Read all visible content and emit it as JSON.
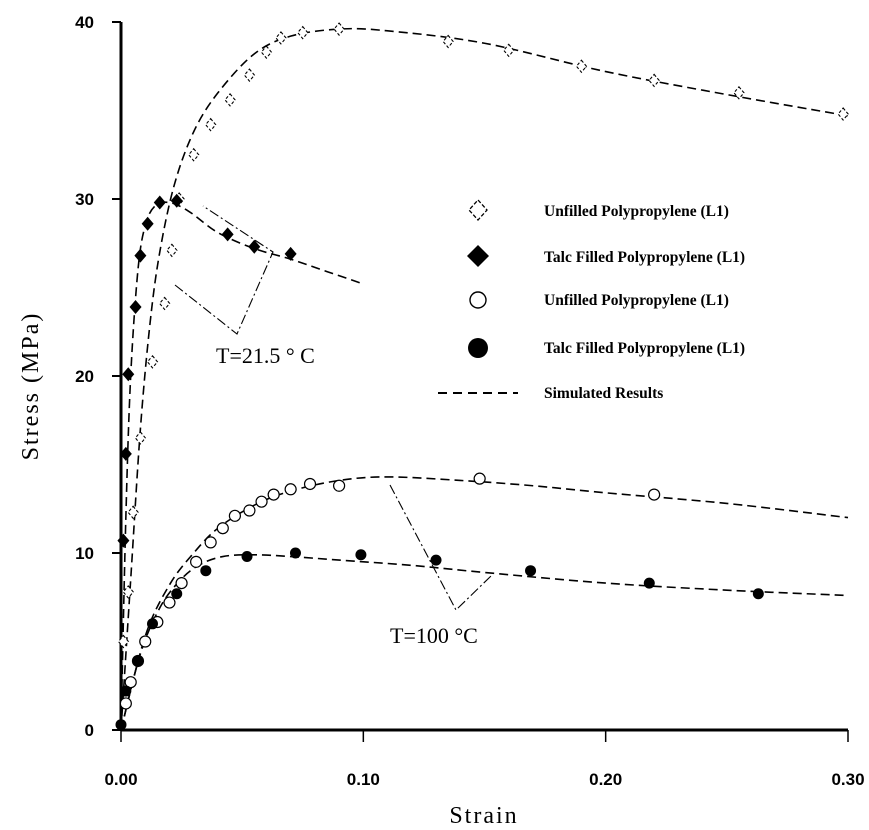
{
  "chart_data": {
    "type": "scatter",
    "xlabel": "Strain",
    "ylabel": "Stress (MPa)",
    "xlim": [
      0,
      0.3
    ],
    "ylim": [
      0,
      40
    ],
    "x_ticks": [
      "0.00",
      "0.10",
      "0.20",
      "0.30"
    ],
    "y_ticks": [
      "0",
      "10",
      "20",
      "30",
      "40"
    ],
    "grid": false,
    "legend_position": "right",
    "series": [
      {
        "name": "Unfilled Polypropylene (L1)",
        "marker": "open-diamond",
        "condition": "T=21.5 °C",
        "x": [
          0.001,
          0.003,
          0.005,
          0.008,
          0.013,
          0.018,
          0.021,
          0.024,
          0.03,
          0.037,
          0.045,
          0.053,
          0.06,
          0.066,
          0.075,
          0.09,
          0.135,
          0.16,
          0.19,
          0.22,
          0.255,
          0.298
        ],
        "y": [
          5.0,
          7.8,
          12.3,
          16.5,
          20.8,
          24.1,
          27.1,
          30.0,
          32.5,
          34.2,
          35.6,
          37.0,
          38.3,
          39.1,
          39.4,
          39.6,
          38.9,
          38.4,
          37.5,
          36.7,
          36.0,
          34.8
        ]
      },
      {
        "name": "Talc Filled Polypropylene (L1)",
        "marker": "filled-diamond",
        "condition": "T=21.5 °C",
        "x": [
          0.001,
          0.002,
          0.003,
          0.006,
          0.008,
          0.011,
          0.016,
          0.023,
          0.044,
          0.055,
          0.07
        ],
        "y": [
          10.7,
          15.6,
          20.1,
          23.9,
          26.8,
          28.6,
          29.8,
          29.9,
          28.0,
          27.3,
          26.9
        ]
      },
      {
        "name": "Unfilled Polypropylene (L1)",
        "marker": "open-circle",
        "condition": "T=100 °C",
        "x": [
          0.002,
          0.004,
          0.007,
          0.01,
          0.015,
          0.02,
          0.025,
          0.031,
          0.037,
          0.042,
          0.047,
          0.053,
          0.058,
          0.063,
          0.07,
          0.078,
          0.09,
          0.148,
          0.22
        ],
        "y": [
          1.5,
          2.7,
          3.9,
          5.0,
          6.1,
          7.2,
          8.3,
          9.5,
          10.6,
          11.4,
          12.1,
          12.4,
          12.9,
          13.3,
          13.6,
          13.9,
          13.8,
          14.2,
          13.3
        ]
      },
      {
        "name": "Talc Filled Polypropylene (L1)",
        "marker": "filled-circle",
        "condition": "T=100 °C",
        "x": [
          0.0,
          0.002,
          0.007,
          0.013,
          0.023,
          0.035,
          0.052,
          0.072,
          0.099,
          0.13,
          0.169,
          0.218,
          0.263
        ],
        "y": [
          0.3,
          2.2,
          3.9,
          6.0,
          7.7,
          9.0,
          9.8,
          10.0,
          9.9,
          9.6,
          9.0,
          8.3,
          7.7
        ]
      },
      {
        "name": "Simulated Results",
        "marker": "dashed-line",
        "curves": [
          {
            "x": [
              0.0,
              0.004,
              0.008,
              0.012,
              0.016,
              0.022,
              0.03,
              0.04,
              0.055,
              0.07,
              0.09,
              0.11,
              0.15,
              0.2,
              0.25,
              0.3
            ],
            "y": [
              0.0,
              8.5,
              17.0,
              23.0,
              27.0,
              30.8,
              33.8,
              36.0,
              38.2,
              39.2,
              39.6,
              39.5,
              38.8,
              37.2,
              35.9,
              34.7
            ]
          },
          {
            "x": [
              0.0,
              0.002,
              0.004,
              0.007,
              0.01,
              0.014,
              0.02,
              0.028,
              0.04,
              0.055,
              0.07,
              0.085,
              0.1
            ],
            "y": [
              0.0,
              12.0,
              20.0,
              26.0,
              28.5,
              29.6,
              29.8,
              29.3,
              28.1,
              27.2,
              26.6,
              25.9,
              25.2
            ]
          },
          {
            "x": [
              0.0,
              0.01,
              0.02,
              0.03,
              0.04,
              0.055,
              0.07,
              0.09,
              0.11,
              0.14,
              0.17,
              0.2,
              0.25,
              0.3
            ],
            "y": [
              0.0,
              5.3,
              8.2,
              10.0,
              11.4,
              12.7,
              13.5,
              14.1,
              14.3,
              14.1,
              13.8,
              13.4,
              12.8,
              12.0
            ]
          },
          {
            "x": [
              0.0,
              0.008,
              0.016,
              0.024,
              0.032,
              0.042,
              0.055,
              0.07,
              0.09,
              0.12,
              0.15,
              0.2,
              0.25,
              0.3
            ],
            "y": [
              0.0,
              4.3,
              6.9,
              8.4,
              9.3,
              9.8,
              9.9,
              9.8,
              9.6,
              9.3,
              8.9,
              8.3,
              7.9,
              7.6
            ]
          }
        ]
      }
    ],
    "annotations": [
      {
        "text": "T=21.5 ° C"
      },
      {
        "text": "T=100 °C"
      }
    ]
  }
}
